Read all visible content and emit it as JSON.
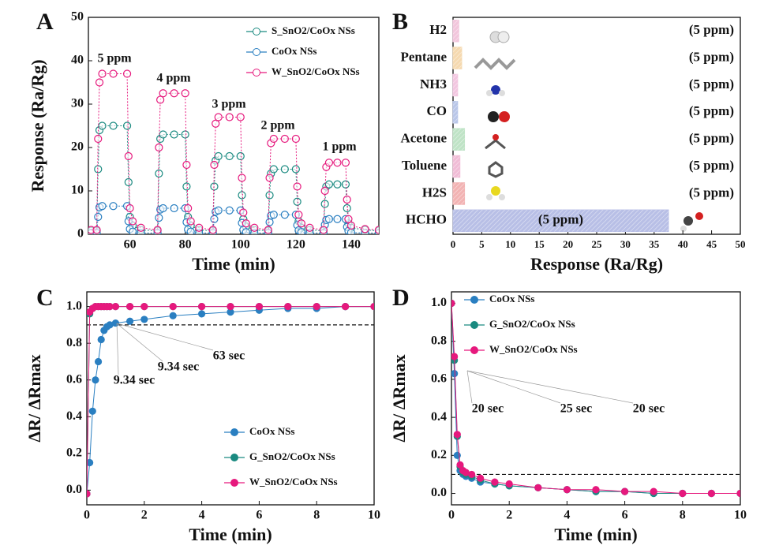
{
  "chart_data": [
    {
      "type": "line",
      "panel_label": "A",
      "xlabel": "Time (min)",
      "ylabel": "Response (Ra/Rg)",
      "xlim": [
        45,
        150
      ],
      "xticks": [
        60,
        80,
        100,
        120,
        140
      ],
      "ylim": [
        0,
        50
      ],
      "yticks": [
        0,
        10,
        20,
        30,
        40,
        50
      ],
      "marker": "open",
      "legend": "upper right",
      "annotations": [
        "5 ppm",
        "4 ppm",
        "3 ppm",
        "2 ppm",
        "1 ppm"
      ],
      "x": [
        46,
        48,
        48.5,
        49,
        50,
        54,
        59,
        59.5,
        60,
        61,
        64,
        70,
        70.5,
        71,
        72,
        76,
        80,
        80.5,
        81,
        82,
        85,
        90,
        90.5,
        91,
        92,
        96,
        100,
        100.5,
        101,
        102,
        105,
        110,
        110.5,
        111,
        112,
        116,
        120,
        120.5,
        121,
        122,
        125,
        130,
        130.5,
        131,
        132,
        135,
        138,
        138.5,
        139,
        140,
        145,
        150
      ],
      "series": [
        {
          "name": "S_SnO2/CoOx NSs",
          "color": "#1a8a80",
          "values": [
            0.8,
            0.8,
            15,
            24,
            25,
            25,
            25,
            12,
            4,
            2,
            1,
            0.8,
            14,
            22,
            23,
            23,
            23,
            11,
            4,
            2,
            1,
            0.8,
            11,
            17,
            18,
            18,
            18,
            9,
            3.5,
            1.8,
            1,
            0.8,
            9,
            14,
            15,
            15,
            15,
            7.5,
            3,
            1.5,
            1,
            0.8,
            7,
            11,
            11.5,
            11.5,
            11.5,
            6,
            2.5,
            1.5,
            1,
            0.8
          ]
        },
        {
          "name": "CoOx NSs",
          "color": "#2a7fc1",
          "values": [
            0.3,
            0.3,
            4,
            6.2,
            6.5,
            6.5,
            6.5,
            3,
            1.2,
            0.6,
            0.3,
            0.3,
            3.8,
            5.7,
            6,
            6,
            6,
            2.8,
            1.1,
            0.6,
            0.3,
            0.3,
            3.5,
            5.2,
            5.5,
            5.5,
            5.5,
            2.6,
            1,
            0.5,
            0.3,
            0.3,
            2.8,
            4.3,
            4.5,
            4.5,
            4.5,
            2.1,
            0.9,
            0.5,
            0.3,
            0.3,
            2.2,
            3.3,
            3.5,
            3.5,
            3.5,
            1.7,
            0.8,
            0.4,
            0.3,
            0.3
          ]
        },
        {
          "name": "W_SnO2/CoOx NSs",
          "color": "#e6197d",
          "values": [
            1,
            1,
            22,
            35,
            37,
            37,
            37,
            18,
            6,
            3,
            1.5,
            1,
            20,
            31,
            32.5,
            32.5,
            32.5,
            16,
            6,
            3,
            1.5,
            1,
            16,
            25.5,
            27,
            27,
            27,
            13,
            5,
            2.5,
            1.5,
            1,
            13,
            21,
            22,
            22,
            22,
            11,
            4.5,
            2.5,
            1.5,
            1,
            10,
            15.5,
            16.5,
            16.5,
            16.5,
            8,
            3.5,
            2,
            1.2,
            1
          ]
        }
      ]
    },
    {
      "type": "bar",
      "orientation": "horizontal",
      "panel_label": "B",
      "xlabel": "Response (Ra/Rg)",
      "xlim": [
        0,
        50
      ],
      "xticks": [
        0,
        5,
        10,
        15,
        20,
        25,
        30,
        35,
        40,
        45,
        50
      ],
      "categories": [
        "H2",
        "Pentane",
        "NH3",
        "CO",
        "Acetone",
        "Toluene",
        "H2S",
        "HCHO"
      ],
      "values": [
        1,
        1.5,
        0.8,
        0.8,
        2,
        1.2,
        2,
        37.5
      ],
      "colors": [
        "#f2c6dc",
        "#f5d9b0",
        "#f2c6e0",
        "#b9c6e8",
        "#bfe3c6",
        "#f0bcd6",
        "#f2b3b3",
        "#b8bfe6"
      ],
      "annotations": [
        "(5 ppm)",
        "(5 ppm)",
        "(5 ppm)",
        "(5 ppm)",
        "(5 ppm)",
        "(5 ppm)",
        "(5 ppm)",
        "(5 ppm)"
      ]
    },
    {
      "type": "line",
      "panel_label": "C",
      "xlabel": "Time (min)",
      "ylabel": "ΔR/ ΔRmax",
      "xlim": [
        0,
        10
      ],
      "xticks": [
        0,
        2,
        4,
        6,
        8,
        10
      ],
      "ylim": [
        -0.08,
        1.08
      ],
      "yticks": [
        {
          "value": 0,
          "label": "0.0"
        },
        0.2,
        0.4,
        0.6,
        0.8,
        {
          "value": 1,
          "label": "1.0"
        }
      ],
      "marker": "filled",
      "legend": "lower right",
      "reference_line": 0.9,
      "annotations": [
        "9.34 sec",
        "9.34 sec",
        "63 sec"
      ],
      "x": [
        0,
        0.1,
        0.2,
        0.3,
        0.4,
        0.5,
        0.6,
        0.7,
        0.8,
        1,
        1.5,
        2,
        3,
        4,
        5,
        6,
        7,
        8,
        9,
        10
      ],
      "series": [
        {
          "name": "CoOx NSs",
          "color": "#2a7fc1",
          "values": [
            -0.02,
            0.15,
            0.43,
            0.6,
            0.7,
            0.82,
            0.87,
            0.89,
            0.9,
            0.91,
            0.92,
            0.93,
            0.95,
            0.96,
            0.97,
            0.98,
            0.99,
            0.99,
            1,
            1
          ]
        },
        {
          "name": "G_SnO2/CoOx NSs",
          "color": "#1a8a80",
          "values": [
            -0.02,
            0.96,
            0.99,
            1,
            1,
            1,
            1,
            1,
            1,
            1,
            1,
            1,
            1,
            1,
            1,
            1,
            1,
            1,
            1,
            1
          ]
        },
        {
          "name": "W_SnO2/CoOx NSs",
          "color": "#e6197d",
          "values": [
            -0.02,
            0.97,
            0.99,
            1,
            1,
            1,
            1,
            1,
            1,
            1,
            1,
            1,
            1,
            1,
            1,
            1,
            1,
            1,
            1,
            1
          ]
        }
      ]
    },
    {
      "type": "line",
      "panel_label": "D",
      "xlabel": "Time (min)",
      "ylabel": "ΔR/ ΔRmax",
      "xlim": [
        0,
        10
      ],
      "xticks": [
        0,
        2,
        4,
        6,
        8,
        10
      ],
      "ylim": [
        -0.06,
        1.06
      ],
      "yticks": [
        {
          "value": 0,
          "label": "0.0"
        },
        0.2,
        0.4,
        0.6,
        0.8,
        {
          "value": 1,
          "label": "1.0"
        }
      ],
      "marker": "filled",
      "legend": "upper left",
      "reference_line": 0.1,
      "annotations": [
        "20 sec",
        "25 sec",
        "20 sec"
      ],
      "x": [
        0,
        0.1,
        0.2,
        0.3,
        0.4,
        0.5,
        0.7,
        1,
        1.5,
        2,
        3,
        4,
        5,
        6,
        7,
        8,
        9,
        10
      ],
      "series": [
        {
          "name": "CoOx NSs",
          "color": "#2a7fc1",
          "values": [
            1,
            0.63,
            0.2,
            0.12,
            0.1,
            0.09,
            0.08,
            0.06,
            0.05,
            0.04,
            0.03,
            0.02,
            0.01,
            0.01,
            0,
            0,
            0,
            0
          ]
        },
        {
          "name": "G_SnO2/CoOx NSs",
          "color": "#1a8a80",
          "values": [
            1,
            0.7,
            0.3,
            0.14,
            0.11,
            0.1,
            0.09,
            0.07,
            0.05,
            0.04,
            0.03,
            0.02,
            0.01,
            0.01,
            0,
            0,
            0,
            0
          ]
        },
        {
          "name": "W_SnO2/CoOx NSs",
          "color": "#e6197d",
          "values": [
            1,
            0.72,
            0.31,
            0.15,
            0.12,
            0.11,
            0.1,
            0.08,
            0.06,
            0.05,
            0.03,
            0.02,
            0.02,
            0.01,
            0.01,
            0,
            0,
            0
          ]
        }
      ]
    }
  ]
}
